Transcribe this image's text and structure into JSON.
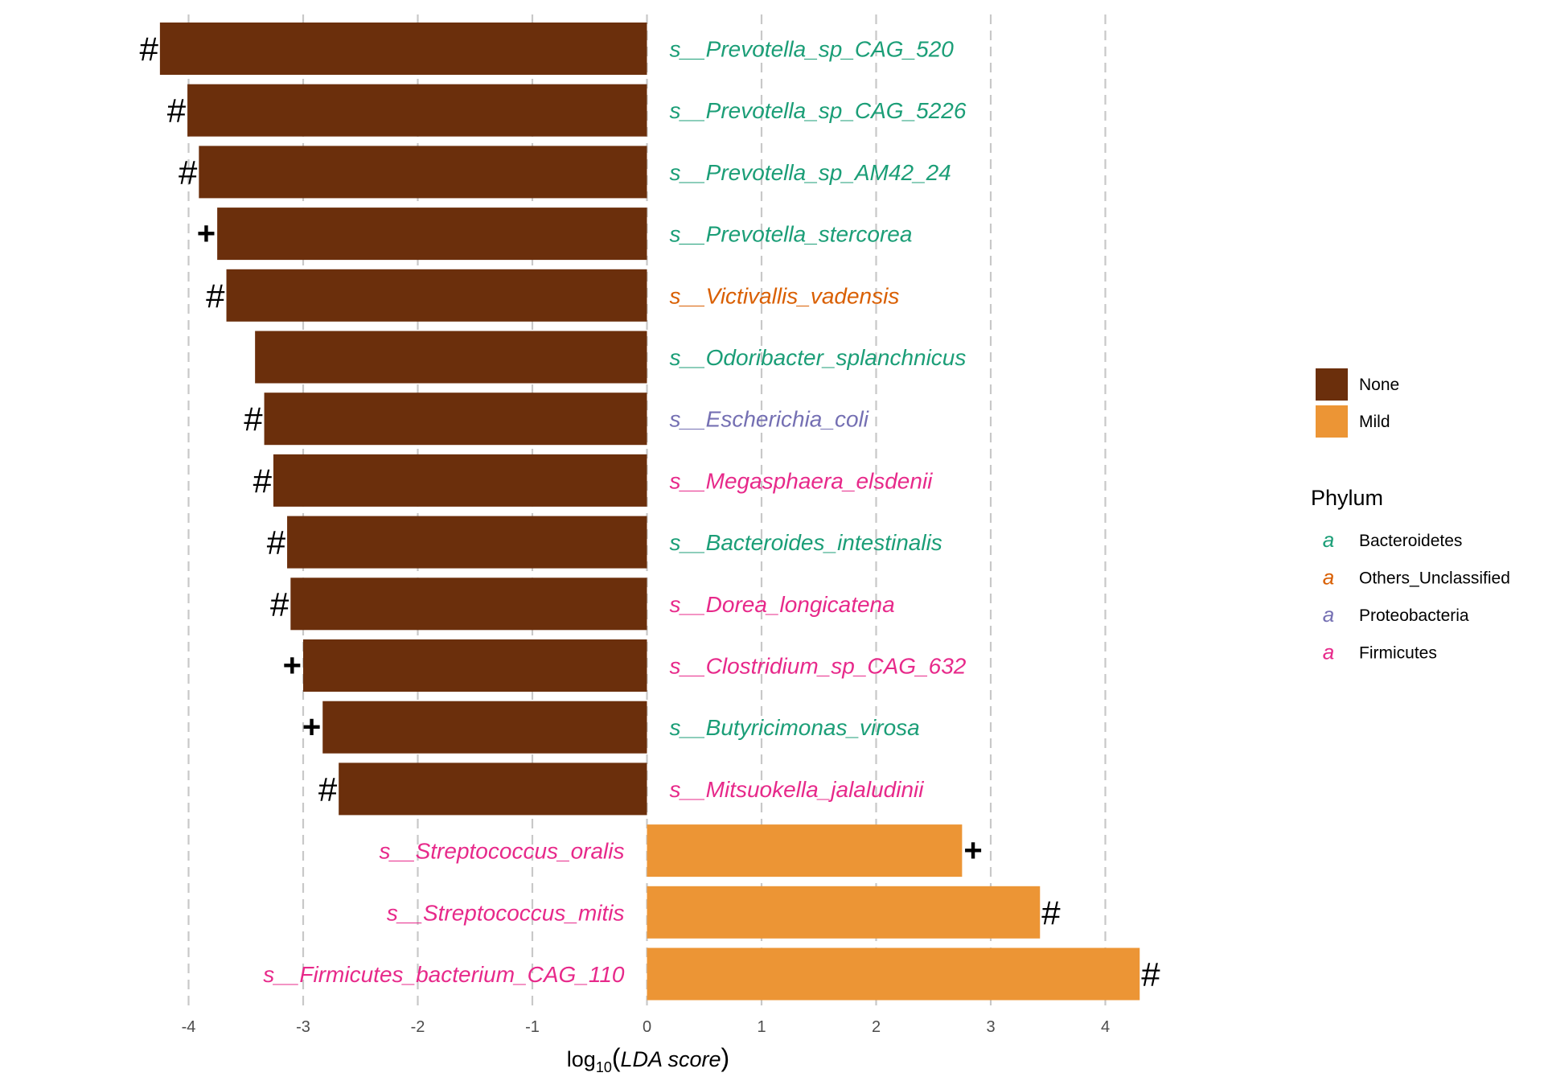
{
  "chart_data": {
    "type": "bar",
    "orientation": "horizontal",
    "categories": [
      "s__Prevotella_sp_CAG_520",
      "s__Prevotella_sp_CAG_5226",
      "s__Prevotella_sp_AM42_24",
      "s__Prevotella_stercorea",
      "s__Victivallis_vadensis",
      "s__Odoribacter_splanchnicus",
      "s__Escherichia_coli",
      "s__Megasphaera_elsdenii",
      "s__Bacteroides_intestinalis",
      "s__Dorea_longicatena",
      "s__Clostridium_sp_CAG_632",
      "s__Butyricimonas_virosa",
      "s__Mitsuokella_jalaludinii",
      "s__Streptococcus_oralis",
      "s__Streptococcus_mitis",
      "s__Firmicutes_bacterium_CAG_110"
    ],
    "values": [
      -4.25,
      -4.01,
      -3.91,
      -3.75,
      -3.67,
      -3.42,
      -3.34,
      -3.26,
      -3.14,
      -3.11,
      -3.0,
      -2.83,
      -2.69,
      2.75,
      3.43,
      4.3
    ],
    "groups": [
      "None",
      "None",
      "None",
      "None",
      "None",
      "None",
      "None",
      "None",
      "None",
      "None",
      "None",
      "None",
      "None",
      "Mild",
      "Mild",
      "Mild"
    ],
    "markers": [
      "#",
      "#",
      "#",
      "+",
      "#",
      "",
      "#",
      "#",
      "#",
      "#",
      "+",
      "+",
      "#",
      "+",
      "#",
      "#"
    ],
    "phylum": [
      "Bacteroidetes",
      "Bacteroidetes",
      "Bacteroidetes",
      "Bacteroidetes",
      "Others_Unclassified",
      "Bacteroidetes",
      "Proteobacteria",
      "Firmicutes",
      "Bacteroidetes",
      "Firmicutes",
      "Firmicutes",
      "Bacteroidetes",
      "Firmicutes",
      "Firmicutes",
      "Firmicutes",
      "Firmicutes"
    ],
    "xlabel": {
      "prefix": "log",
      "sub": "10",
      "open": "(",
      "italic": "LDA score",
      "close": ")"
    },
    "xlim": [
      -4.35,
      4.45
    ],
    "xticks": [
      -4,
      -3,
      -2,
      -1,
      0,
      1,
      2,
      3,
      4
    ],
    "grid": "vertical dashed",
    "legend_position": "right",
    "group_colors": {
      "None": "#6b2f0c",
      "Mild": "#ec9535"
    },
    "phylum_colors": {
      "Bacteroidetes": "#1b9e77",
      "Others_Unclassified": "#d95f02",
      "Proteobacteria": "#7570b3",
      "Firmicutes": "#e7298a"
    },
    "legend_group": [
      {
        "key": "None",
        "label": "None"
      },
      {
        "key": "Mild",
        "label": "Mild"
      }
    ],
    "legend_phylum": {
      "title": "Phylum",
      "glyph": "a",
      "items": [
        {
          "key": "Bacteroidetes",
          "label": "Bacteroidetes"
        },
        {
          "key": "Others_Unclassified",
          "label": "Others_Unclassified"
        },
        {
          "key": "Proteobacteria",
          "label": "Proteobacteria"
        },
        {
          "key": "Firmicutes",
          "label": "Firmicutes"
        }
      ]
    }
  }
}
